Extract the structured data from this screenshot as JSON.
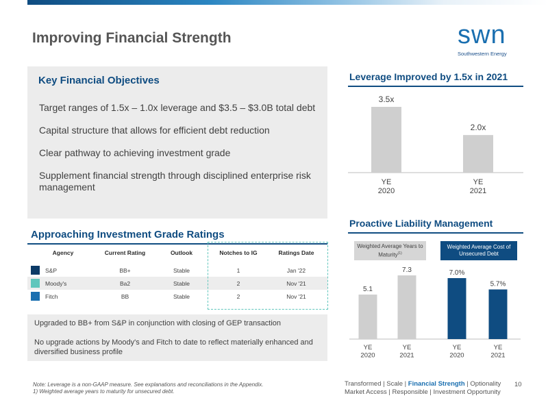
{
  "header": {
    "title": "Improving Financial Strength",
    "logo_word": "swn",
    "logo_tagline": "Southwestern Energy"
  },
  "objectives": {
    "title": "Key Financial Objectives",
    "items": [
      "Target ranges of 1.5x – 1.0x leverage and $3.5 – $3.0B total debt",
      "Capital structure that allows for efficient debt reduction",
      "Clear pathway to achieving investment grade",
      "Supplement financial strength through disciplined enterprise risk management"
    ]
  },
  "ratings": {
    "title": "Approaching Investment Grade Ratings",
    "columns": [
      "Agency",
      "Current Rating",
      "Outlook",
      "Notches to IG",
      "Ratings Date"
    ],
    "rows": [
      {
        "agency": "S&P",
        "rating": "BB+",
        "outlook": "Stable",
        "notches": "1",
        "date": "Jan '22",
        "color": "#0b3a66"
      },
      {
        "agency": "Moody's",
        "rating": "Ba2",
        "outlook": "Stable",
        "notches": "2",
        "date": "Nov '21",
        "color": "#5fc6bc"
      },
      {
        "agency": "Fitch",
        "rating": "BB",
        "outlook": "Stable",
        "notches": "2",
        "date": "Nov '21",
        "color": "#1a6fb0"
      }
    ],
    "notes": [
      "Upgraded to BB+ from S&P in conjunction with closing of GEP transaction",
      "No upgrade actions by Moody's and Fitch to date to reflect materially enhanced and diversified business profile"
    ]
  },
  "chart_data": [
    {
      "type": "bar",
      "title": "Leverage Improved by 1.5x in 2021",
      "categories": [
        "YE\n2020",
        "YE\n2021"
      ],
      "values": [
        3.5,
        2.0
      ],
      "labels": [
        "3.5x",
        "2.0x"
      ],
      "color": "#cfcfcf",
      "ylim": [
        0,
        3.5
      ]
    },
    {
      "type": "bar",
      "title": "Proactive Liability Management",
      "groups": [
        {
          "name": "Weighted Average Years to Maturity",
          "superscript": "(1)",
          "color": "#cfcfcf",
          "categories": [
            "YE\n2020",
            "YE\n2021"
          ],
          "values": [
            5.1,
            7.3
          ],
          "labels": [
            "5.1",
            "7.3"
          ]
        },
        {
          "name": "Weighted Average Cost of Unsecured Debt",
          "color": "#0f4c81",
          "categories": [
            "YE\n2020",
            "YE\n2021"
          ],
          "values": [
            7.0,
            5.7
          ],
          "labels": [
            "7.0%",
            "5.7%"
          ]
        }
      ]
    }
  ],
  "footer": {
    "footnote_1": "Note: Leverage is a non-GAAP measure. See explanations and reconciliations in the Appendix.",
    "footnote_2": "1) Weighted average years to maturity for unsecured debt.",
    "nav_before": "Transformed | Scale | ",
    "nav_highlight": "Financial Strength",
    "nav_after": " | Optionality",
    "nav_line2": "Market Access | Responsible | Investment Opportunity",
    "page_number": "10"
  }
}
